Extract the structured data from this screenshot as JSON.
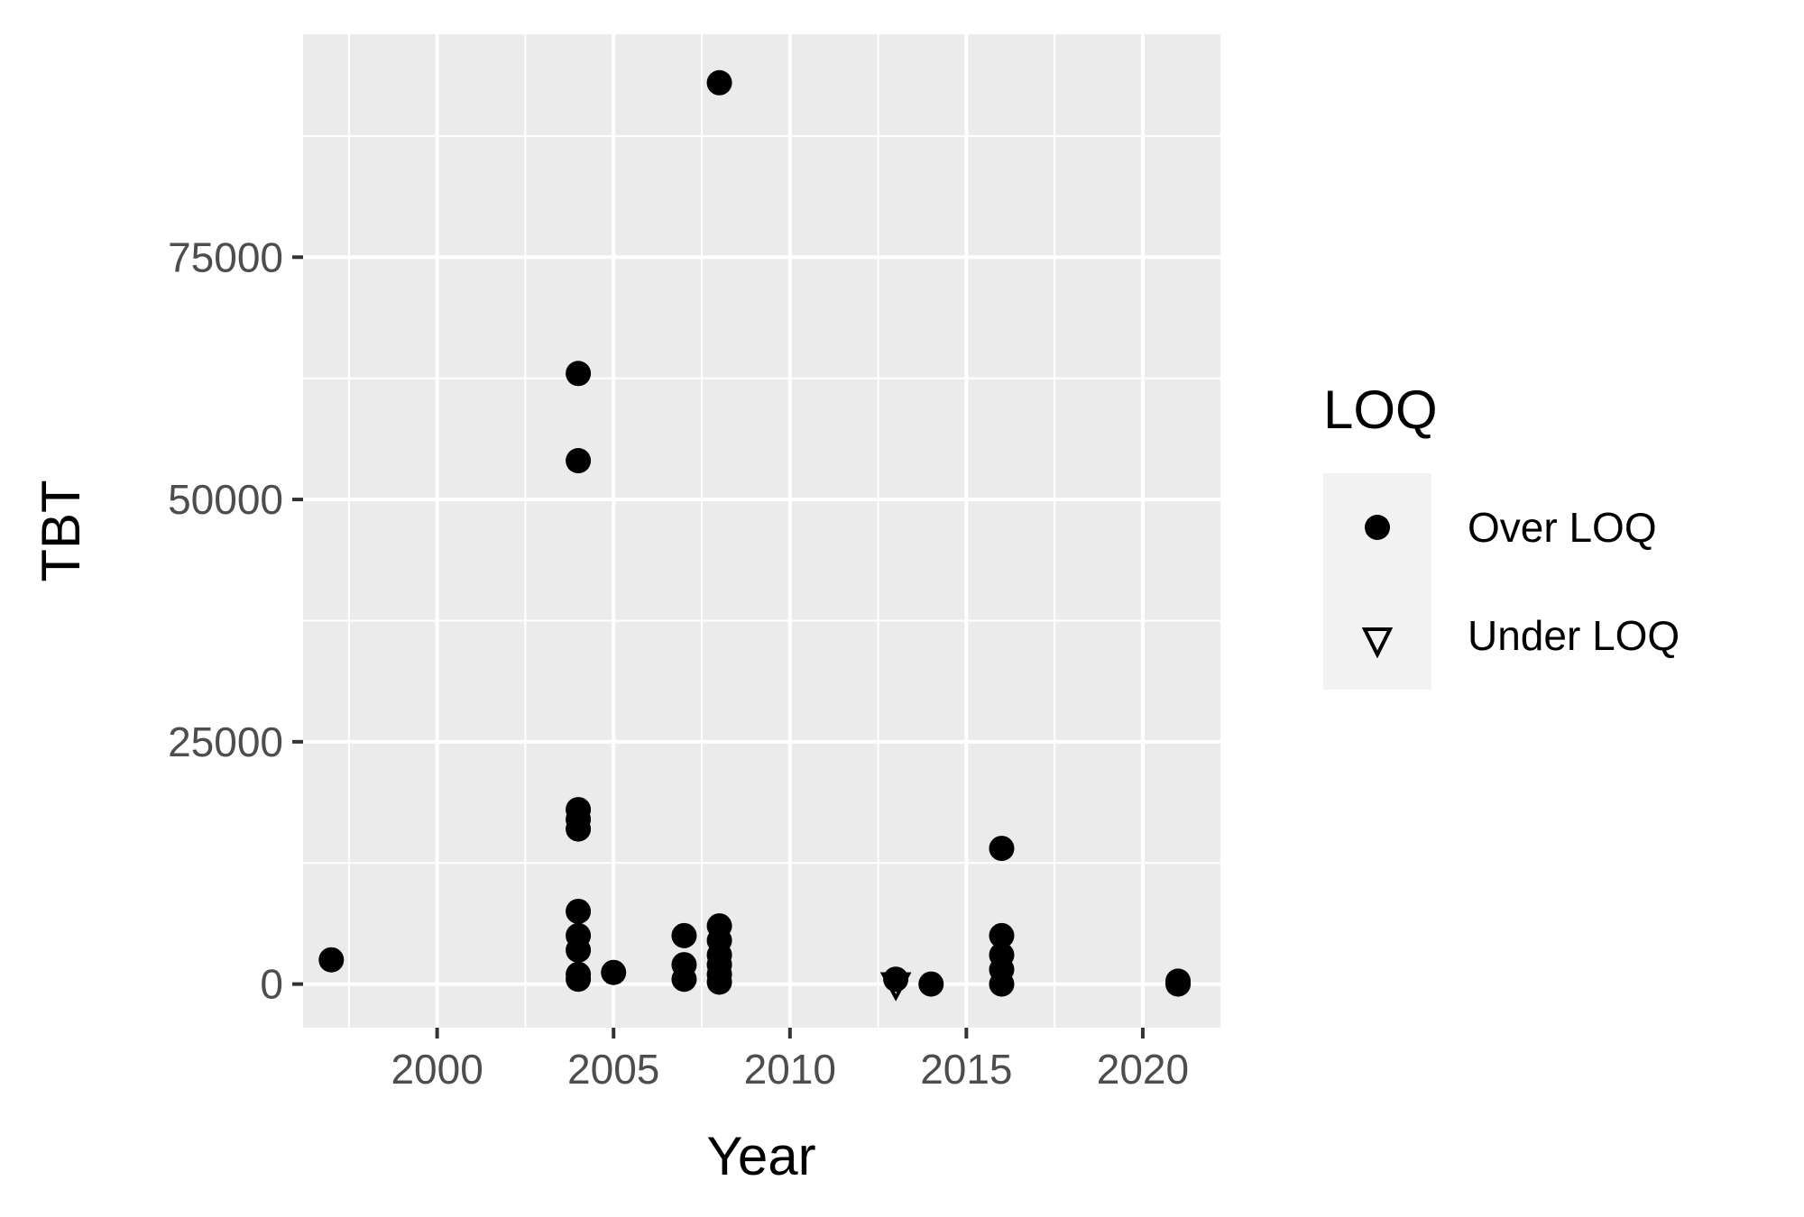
{
  "chart_data": {
    "type": "scatter",
    "xlabel": "Year",
    "ylabel": "TBT",
    "xlim": [
      1996.2,
      2022.2
    ],
    "ylim": [
      -4500,
      98000
    ],
    "x_ticks": [
      2000,
      2005,
      2010,
      2015,
      2020
    ],
    "y_ticks": [
      0,
      25000,
      50000,
      75000
    ],
    "grid": true,
    "legend": {
      "title": "LOQ",
      "position": "right",
      "entries": [
        {
          "label": "Over LOQ",
          "shape": "circle"
        },
        {
          "label": "Under LOQ",
          "shape": "triangle-down-open"
        }
      ]
    },
    "series": [
      {
        "name": "Over LOQ",
        "points": [
          {
            "x": 1997,
            "y": 2500
          },
          {
            "x": 2004,
            "y": 63000
          },
          {
            "x": 2004,
            "y": 54000
          },
          {
            "x": 2004,
            "y": 18000
          },
          {
            "x": 2004,
            "y": 17000
          },
          {
            "x": 2004,
            "y": 16000
          },
          {
            "x": 2004,
            "y": 7500
          },
          {
            "x": 2004,
            "y": 5000
          },
          {
            "x": 2004,
            "y": 3500
          },
          {
            "x": 2004,
            "y": 1000
          },
          {
            "x": 2004,
            "y": 500
          },
          {
            "x": 2005,
            "y": 1200
          },
          {
            "x": 2007,
            "y": 5000
          },
          {
            "x": 2007,
            "y": 2000
          },
          {
            "x": 2007,
            "y": 500
          },
          {
            "x": 2008,
            "y": 93000
          },
          {
            "x": 2008,
            "y": 6000
          },
          {
            "x": 2008,
            "y": 4500
          },
          {
            "x": 2008,
            "y": 3000
          },
          {
            "x": 2008,
            "y": 2000
          },
          {
            "x": 2008,
            "y": 1000
          },
          {
            "x": 2008,
            "y": 200
          },
          {
            "x": 2013,
            "y": 500
          },
          {
            "x": 2014,
            "y": 0
          },
          {
            "x": 2016,
            "y": 14000
          },
          {
            "x": 2016,
            "y": 5000
          },
          {
            "x": 2016,
            "y": 3000
          },
          {
            "x": 2016,
            "y": 1500
          },
          {
            "x": 2016,
            "y": 0
          },
          {
            "x": 2021,
            "y": 300
          },
          {
            "x": 2021,
            "y": 0
          }
        ]
      },
      {
        "name": "Under LOQ",
        "points": [
          {
            "x": 2013,
            "y": 100
          }
        ]
      }
    ]
  }
}
